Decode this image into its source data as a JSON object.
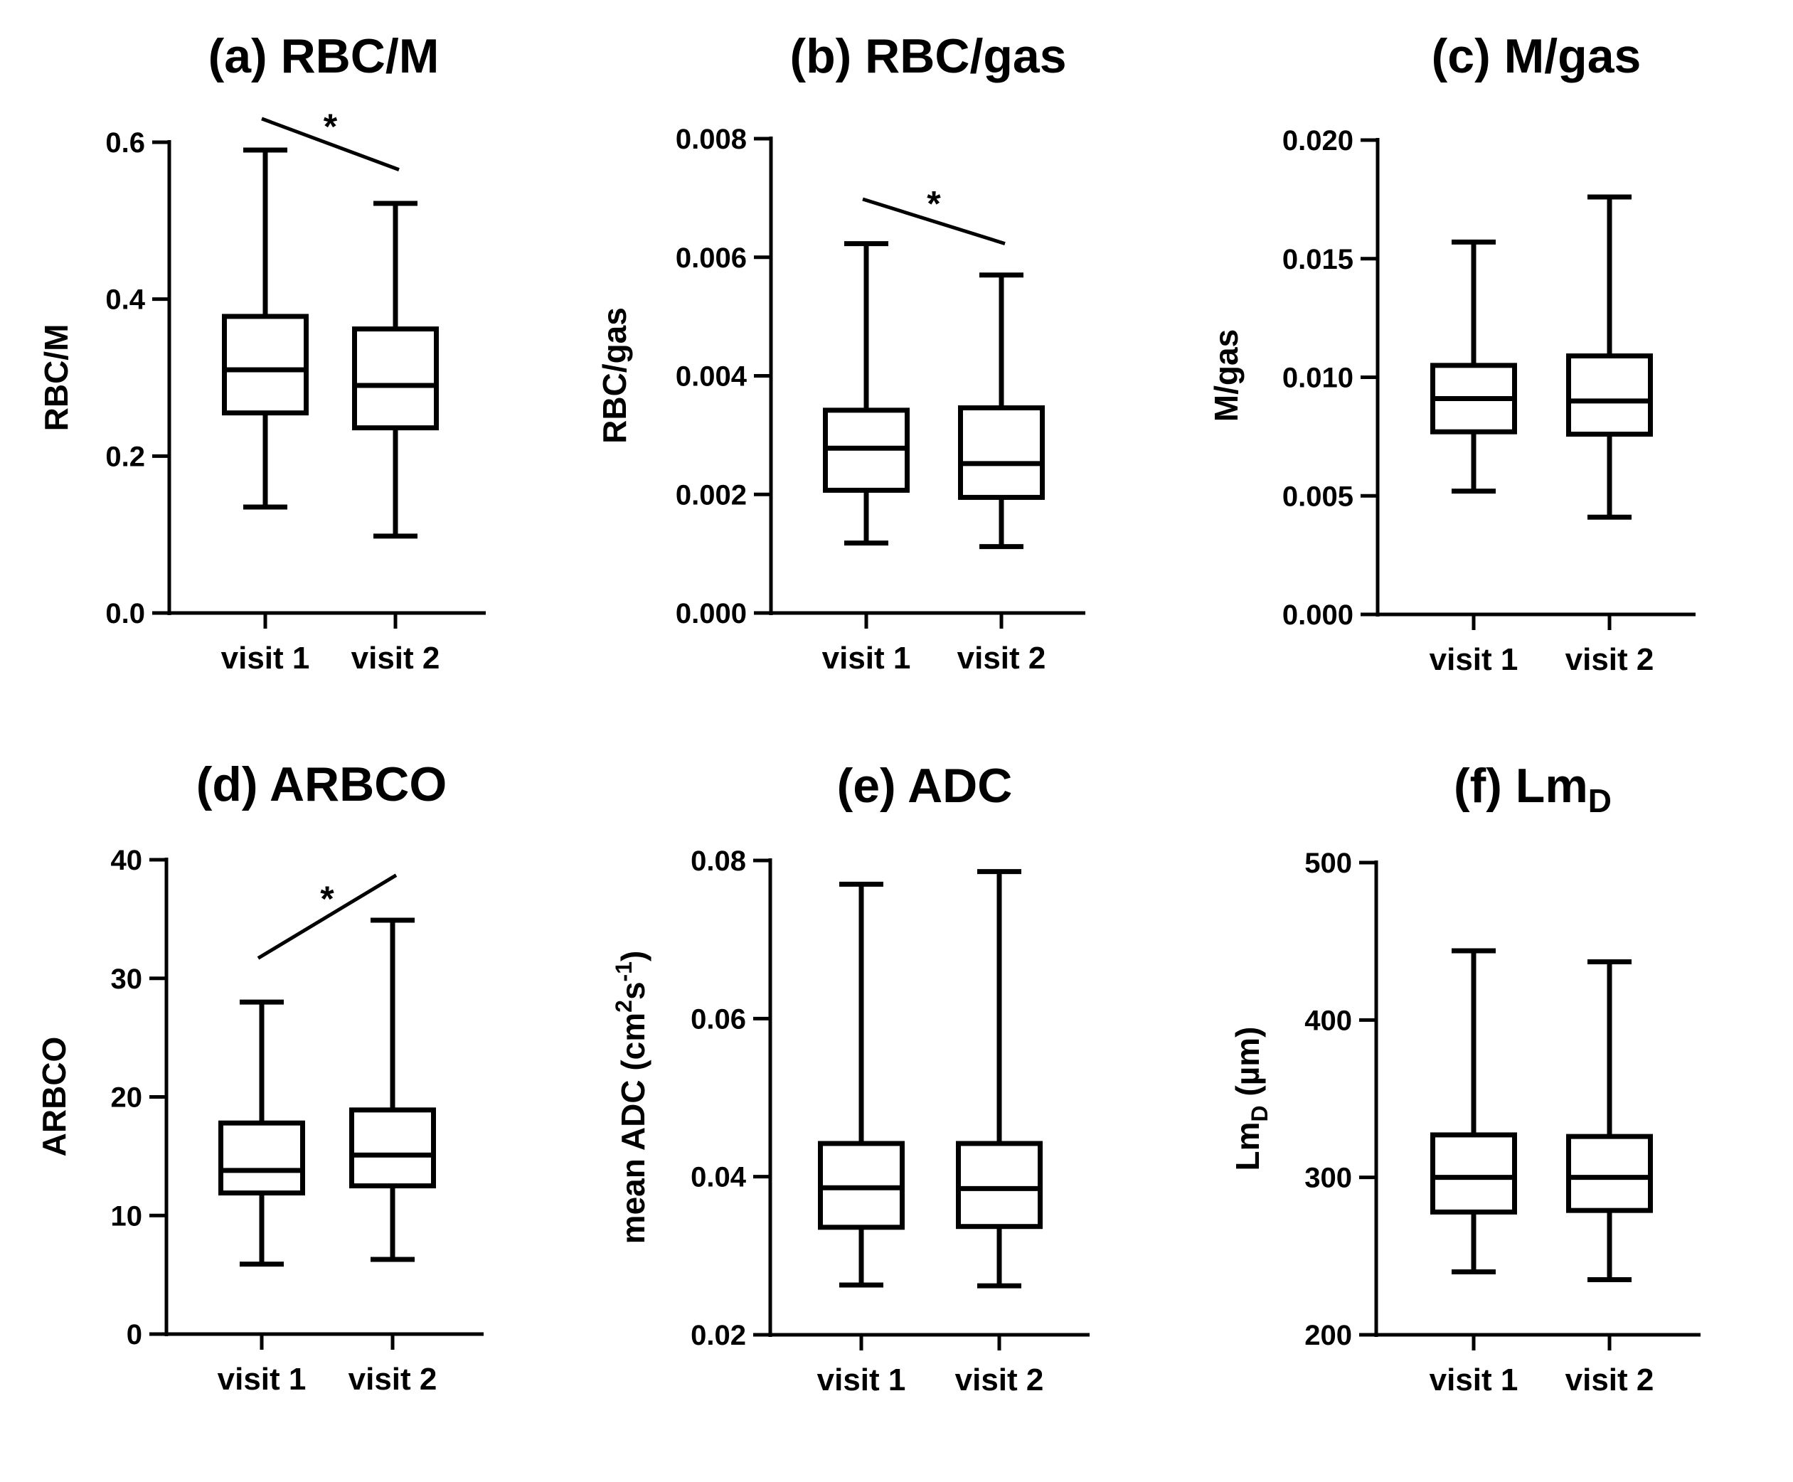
{
  "chart_data": [
    {
      "type": "box",
      "panel_label": "(a)",
      "title": "RBC/M",
      "ylabel": "RBC/M",
      "ylim": [
        0,
        0.6
      ],
      "yticks": [
        "0.0",
        "0.2",
        "0.4",
        "0.6"
      ],
      "ytick_values": [
        0,
        0.2,
        0.4,
        0.6
      ],
      "categories": [
        "visit 1",
        "visit 2"
      ],
      "boxes": [
        {
          "min": 0.135,
          "q1": 0.255,
          "median": 0.31,
          "q3": 0.378,
          "max": 0.59
        },
        {
          "min": 0.098,
          "q1": 0.236,
          "median": 0.29,
          "q3": 0.362,
          "max": 0.522
        }
      ],
      "significance": {
        "label": "*",
        "y_from": 0.63,
        "y_to": 0.565
      }
    },
    {
      "type": "box",
      "panel_label": "(b)",
      "title": "RBC/gas",
      "ylabel": "RBC/gas",
      "ylim": [
        0,
        0.008
      ],
      "yticks": [
        "0.000",
        "0.002",
        "0.004",
        "0.006",
        "0.008"
      ],
      "ytick_values": [
        0,
        0.002,
        0.004,
        0.006,
        0.008
      ],
      "categories": [
        "visit 1",
        "visit 2"
      ],
      "boxes": [
        {
          "min": 0.00118,
          "q1": 0.00207,
          "median": 0.00278,
          "q3": 0.00342,
          "max": 0.00623
        },
        {
          "min": 0.00112,
          "q1": 0.00195,
          "median": 0.00252,
          "q3": 0.00346,
          "max": 0.0057
        }
      ],
      "significance": {
        "label": "*",
        "y_from": 0.00698,
        "y_to": 0.00623
      }
    },
    {
      "type": "box",
      "panel_label": "(c)",
      "title": "M/gas",
      "ylabel": "M/gas",
      "ylim": [
        0,
        0.02
      ],
      "yticks": [
        "0.000",
        "0.005",
        "0.010",
        "0.015",
        "0.020"
      ],
      "ytick_values": [
        0,
        0.005,
        0.01,
        0.015,
        0.02
      ],
      "categories": [
        "visit 1",
        "visit 2"
      ],
      "boxes": [
        {
          "min": 0.0052,
          "q1": 0.0077,
          "median": 0.0091,
          "q3": 0.0105,
          "max": 0.0157
        },
        {
          "min": 0.0041,
          "q1": 0.0076,
          "median": 0.009,
          "q3": 0.0109,
          "max": 0.0176
        }
      ]
    },
    {
      "type": "box",
      "panel_label": "(d)",
      "title": "ARBCO",
      "ylabel": "ARBCO",
      "ylim": [
        0,
        40
      ],
      "yticks": [
        "0",
        "10",
        "20",
        "30",
        "40"
      ],
      "ytick_values": [
        0,
        10,
        20,
        30,
        40
      ],
      "categories": [
        "visit 1",
        "visit 2"
      ],
      "boxes": [
        {
          "min": 5.9,
          "q1": 11.9,
          "median": 13.8,
          "q3": 17.8,
          "max": 28.0
        },
        {
          "min": 6.3,
          "q1": 12.5,
          "median": 15.1,
          "q3": 18.9,
          "max": 34.9
        }
      ],
      "significance": {
        "label": "*",
        "y_from": 31.7,
        "y_to": 38.7
      }
    },
    {
      "type": "box",
      "panel_label": "(e)",
      "title": "ADC",
      "ylabel": "mean ADC (cm",
      "ylabel_sup1": "2",
      "ylabel_mid": "s",
      "ylabel_sup2": "-1",
      "ylabel_end": ")",
      "ylim": [
        0.02,
        0.08
      ],
      "yticks": [
        "0.02",
        "0.04",
        "0.06",
        "0.08"
      ],
      "ytick_values": [
        0.02,
        0.04,
        0.06,
        0.08
      ],
      "categories": [
        "visit 1",
        "visit 2"
      ],
      "boxes": [
        {
          "min": 0.0263,
          "q1": 0.0336,
          "median": 0.0386,
          "q3": 0.0442,
          "max": 0.077
        },
        {
          "min": 0.0262,
          "q1": 0.0337,
          "median": 0.0385,
          "q3": 0.0442,
          "max": 0.0786
        }
      ]
    },
    {
      "type": "box",
      "panel_label": "(f)",
      "title": "Lm",
      "title_sub": "D",
      "ylabel": "Lm",
      "ylabel_sub": "D",
      "ylabel_end": " (µm)",
      "ylim": [
        200,
        500
      ],
      "yticks": [
        "200",
        "300",
        "400",
        "500"
      ],
      "ytick_values": [
        200,
        300,
        400,
        500
      ],
      "categories": [
        "visit 1",
        "visit 2"
      ],
      "boxes": [
        {
          "min": 240,
          "q1": 278,
          "median": 300,
          "q3": 327,
          "max": 444
        },
        {
          "min": 235,
          "q1": 279,
          "median": 300,
          "q3": 326,
          "max": 437
        }
      ]
    }
  ]
}
